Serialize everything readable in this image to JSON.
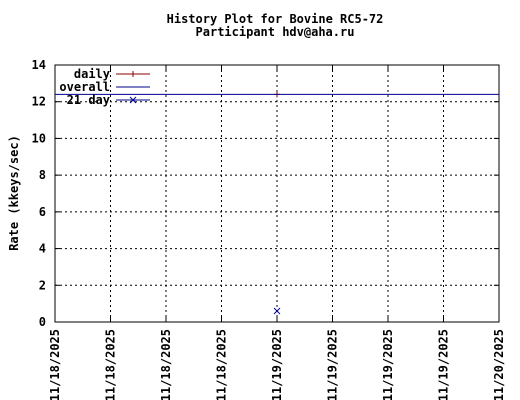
{
  "chart_data": {
    "type": "line",
    "title": "History Plot for Bovine RC5-72",
    "subtitle": "Participant hdv@aha.ru",
    "xlabel": "",
    "ylabel": "Rate (kkeys/sec)",
    "ylim": [
      0,
      14
    ],
    "yticks": [
      "0",
      "2",
      "4",
      "6",
      "8",
      "10",
      "12",
      "14"
    ],
    "xticks": [
      "11/18/2025",
      "11/18/2025",
      "11/18/2025",
      "11/18/2025",
      "11/19/2025",
      "11/19/2025",
      "11/19/2025",
      "11/19/2025",
      "11/20/2025"
    ],
    "grid": true,
    "legend_position": "top-left",
    "series": [
      {
        "name": "daily",
        "color": "#8b0000",
        "marker": "plus",
        "points": [
          {
            "xi": 4,
            "y": 12.4
          }
        ]
      },
      {
        "name": "overall",
        "color": "#00008b",
        "marker": "none",
        "hline": 12.4
      },
      {
        "name": "21 day",
        "color": "#00008b",
        "marker": "cross",
        "points": [
          {
            "xi": 4,
            "y": 0.6
          }
        ]
      }
    ]
  }
}
